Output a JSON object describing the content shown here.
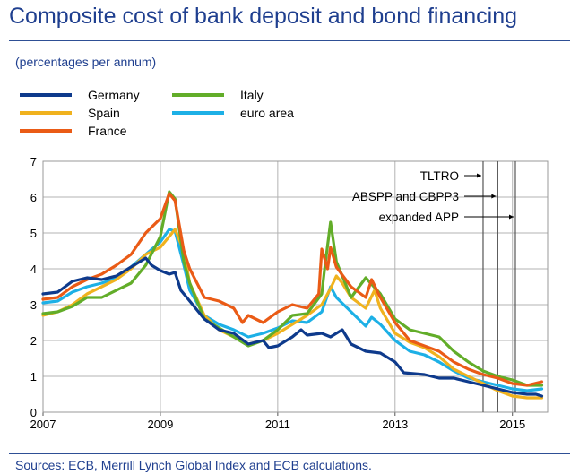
{
  "header": {
    "title": "Composite cost of bank deposit and bond financing",
    "subtitle": "(percentages per annum)"
  },
  "footer": {
    "source": "Sources: ECB, Merrill Lynch Global Index and ECB calculations."
  },
  "chart_data": {
    "type": "line",
    "title": "Composite cost of bank deposit and bond financing",
    "ylabel": "percentages per annum",
    "xlim": [
      2007.0,
      2015.6
    ],
    "ylim": [
      0,
      7
    ],
    "yticks": [
      0,
      1,
      2,
      3,
      4,
      5,
      6,
      7
    ],
    "xticks": [
      {
        "value": 2007,
        "label": "2007"
      },
      {
        "value": 2009,
        "label": "2009"
      },
      {
        "value": 2011,
        "label": "2011"
      },
      {
        "value": 2013,
        "label": "2013"
      },
      {
        "value": 2015,
        "label": "2015"
      }
    ],
    "grid": true,
    "legend_position": "top-left",
    "events": [
      {
        "label": "TLTRO",
        "x": 2014.5
      },
      {
        "label": "ABSPP and CBPP3",
        "x": 2014.75
      },
      {
        "label": "expanded APP",
        "x": 2015.05
      }
    ],
    "series": [
      {
        "name": "Germany",
        "color": "#0e3a8c",
        "points": [
          [
            2007.0,
            3.3
          ],
          [
            2007.25,
            3.35
          ],
          [
            2007.5,
            3.65
          ],
          [
            2007.75,
            3.75
          ],
          [
            2008.0,
            3.7
          ],
          [
            2008.25,
            3.8
          ],
          [
            2008.5,
            4.05
          ],
          [
            2008.75,
            4.3
          ],
          [
            2008.85,
            4.1
          ],
          [
            2009.0,
            3.95
          ],
          [
            2009.15,
            3.85
          ],
          [
            2009.25,
            3.9
          ],
          [
            2009.35,
            3.4
          ],
          [
            2009.5,
            3.1
          ],
          [
            2009.75,
            2.6
          ],
          [
            2010.0,
            2.3
          ],
          [
            2010.25,
            2.2
          ],
          [
            2010.5,
            1.9
          ],
          [
            2010.75,
            2.0
          ],
          [
            2010.85,
            1.8
          ],
          [
            2011.0,
            1.85
          ],
          [
            2011.25,
            2.1
          ],
          [
            2011.4,
            2.3
          ],
          [
            2011.5,
            2.15
          ],
          [
            2011.75,
            2.2
          ],
          [
            2011.9,
            2.1
          ],
          [
            2012.0,
            2.2
          ],
          [
            2012.1,
            2.3
          ],
          [
            2012.25,
            1.9
          ],
          [
            2012.5,
            1.7
          ],
          [
            2012.75,
            1.65
          ],
          [
            2013.0,
            1.4
          ],
          [
            2013.15,
            1.1
          ],
          [
            2013.5,
            1.05
          ],
          [
            2013.75,
            0.95
          ],
          [
            2014.0,
            0.95
          ],
          [
            2014.25,
            0.85
          ],
          [
            2014.5,
            0.75
          ],
          [
            2014.75,
            0.65
          ],
          [
            2015.0,
            0.55
          ],
          [
            2015.25,
            0.5
          ],
          [
            2015.4,
            0.5
          ],
          [
            2015.5,
            0.45
          ]
        ]
      },
      {
        "name": "Spain",
        "color": "#f0b21e",
        "points": [
          [
            2007.0,
            2.7
          ],
          [
            2007.25,
            2.8
          ],
          [
            2007.5,
            3.0
          ],
          [
            2007.75,
            3.3
          ],
          [
            2008.0,
            3.5
          ],
          [
            2008.25,
            3.7
          ],
          [
            2008.5,
            4.0
          ],
          [
            2008.75,
            4.4
          ],
          [
            2009.0,
            4.6
          ],
          [
            2009.15,
            4.9
          ],
          [
            2009.25,
            5.1
          ],
          [
            2009.4,
            4.5
          ],
          [
            2009.5,
            3.6
          ],
          [
            2009.75,
            2.7
          ],
          [
            2010.0,
            2.3
          ],
          [
            2010.25,
            2.1
          ],
          [
            2010.5,
            1.9
          ],
          [
            2010.75,
            2.0
          ],
          [
            2011.0,
            2.2
          ],
          [
            2011.25,
            2.45
          ],
          [
            2011.5,
            2.7
          ],
          [
            2011.75,
            3.0
          ],
          [
            2011.9,
            3.45
          ],
          [
            2012.0,
            3.8
          ],
          [
            2012.1,
            3.6
          ],
          [
            2012.25,
            3.2
          ],
          [
            2012.5,
            2.9
          ],
          [
            2012.65,
            3.4
          ],
          [
            2012.75,
            2.9
          ],
          [
            2013.0,
            2.2
          ],
          [
            2013.25,
            1.95
          ],
          [
            2013.5,
            1.8
          ],
          [
            2013.75,
            1.55
          ],
          [
            2014.0,
            1.2
          ],
          [
            2014.25,
            1.0
          ],
          [
            2014.5,
            0.8
          ],
          [
            2014.75,
            0.6
          ],
          [
            2015.0,
            0.45
          ],
          [
            2015.25,
            0.4
          ],
          [
            2015.5,
            0.4
          ]
        ]
      },
      {
        "name": "France",
        "color": "#ea5b16",
        "points": [
          [
            2007.0,
            3.15
          ],
          [
            2007.25,
            3.2
          ],
          [
            2007.5,
            3.5
          ],
          [
            2007.75,
            3.7
          ],
          [
            2008.0,
            3.85
          ],
          [
            2008.25,
            4.1
          ],
          [
            2008.5,
            4.4
          ],
          [
            2008.75,
            5.0
          ],
          [
            2009.0,
            5.4
          ],
          [
            2009.15,
            6.1
          ],
          [
            2009.25,
            5.9
          ],
          [
            2009.4,
            4.5
          ],
          [
            2009.5,
            4.0
          ],
          [
            2009.75,
            3.2
          ],
          [
            2010.0,
            3.1
          ],
          [
            2010.25,
            2.9
          ],
          [
            2010.4,
            2.5
          ],
          [
            2010.5,
            2.7
          ],
          [
            2010.75,
            2.5
          ],
          [
            2011.0,
            2.8
          ],
          [
            2011.25,
            3.0
          ],
          [
            2011.5,
            2.9
          ],
          [
            2011.7,
            3.3
          ],
          [
            2011.75,
            4.55
          ],
          [
            2011.85,
            4.0
          ],
          [
            2011.9,
            4.6
          ],
          [
            2012.0,
            4.05
          ],
          [
            2012.25,
            3.5
          ],
          [
            2012.5,
            3.2
          ],
          [
            2012.6,
            3.7
          ],
          [
            2012.75,
            3.2
          ],
          [
            2013.0,
            2.5
          ],
          [
            2013.25,
            2.0
          ],
          [
            2013.5,
            1.85
          ],
          [
            2013.75,
            1.7
          ],
          [
            2014.0,
            1.4
          ],
          [
            2014.25,
            1.2
          ],
          [
            2014.5,
            1.05
          ],
          [
            2014.75,
            0.95
          ],
          [
            2015.0,
            0.8
          ],
          [
            2015.25,
            0.75
          ],
          [
            2015.5,
            0.85
          ]
        ]
      },
      {
        "name": "Italy",
        "color": "#62ad29",
        "points": [
          [
            2007.0,
            2.75
          ],
          [
            2007.25,
            2.8
          ],
          [
            2007.5,
            2.95
          ],
          [
            2007.75,
            3.2
          ],
          [
            2008.0,
            3.2
          ],
          [
            2008.25,
            3.4
          ],
          [
            2008.5,
            3.6
          ],
          [
            2008.75,
            4.1
          ],
          [
            2009.0,
            4.9
          ],
          [
            2009.15,
            6.15
          ],
          [
            2009.25,
            5.95
          ],
          [
            2009.4,
            4.2
          ],
          [
            2009.5,
            3.6
          ],
          [
            2009.75,
            2.6
          ],
          [
            2010.0,
            2.35
          ],
          [
            2010.25,
            2.1
          ],
          [
            2010.5,
            1.85
          ],
          [
            2010.75,
            2.0
          ],
          [
            2011.0,
            2.3
          ],
          [
            2011.25,
            2.7
          ],
          [
            2011.5,
            2.75
          ],
          [
            2011.75,
            3.3
          ],
          [
            2011.8,
            4.0
          ],
          [
            2011.9,
            5.3
          ],
          [
            2012.0,
            4.2
          ],
          [
            2012.25,
            3.2
          ],
          [
            2012.5,
            3.75
          ],
          [
            2012.75,
            3.3
          ],
          [
            2013.0,
            2.6
          ],
          [
            2013.25,
            2.3
          ],
          [
            2013.5,
            2.2
          ],
          [
            2013.75,
            2.1
          ],
          [
            2014.0,
            1.7
          ],
          [
            2014.25,
            1.4
          ],
          [
            2014.5,
            1.15
          ],
          [
            2014.75,
            1.0
          ],
          [
            2015.0,
            0.9
          ],
          [
            2015.25,
            0.75
          ],
          [
            2015.5,
            0.75
          ]
        ]
      },
      {
        "name": "euro area",
        "color": "#1db0e6",
        "points": [
          [
            2007.0,
            3.05
          ],
          [
            2007.25,
            3.1
          ],
          [
            2007.5,
            3.35
          ],
          [
            2007.75,
            3.5
          ],
          [
            2008.0,
            3.6
          ],
          [
            2008.25,
            3.75
          ],
          [
            2008.5,
            4.05
          ],
          [
            2008.75,
            4.4
          ],
          [
            2009.0,
            4.75
          ],
          [
            2009.15,
            5.1
          ],
          [
            2009.25,
            5.05
          ],
          [
            2009.4,
            4.1
          ],
          [
            2009.5,
            3.4
          ],
          [
            2009.75,
            2.7
          ],
          [
            2010.0,
            2.45
          ],
          [
            2010.25,
            2.3
          ],
          [
            2010.5,
            2.1
          ],
          [
            2010.75,
            2.2
          ],
          [
            2011.0,
            2.35
          ],
          [
            2011.25,
            2.55
          ],
          [
            2011.5,
            2.5
          ],
          [
            2011.75,
            2.8
          ],
          [
            2011.9,
            3.5
          ],
          [
            2012.0,
            3.2
          ],
          [
            2012.25,
            2.8
          ],
          [
            2012.5,
            2.4
          ],
          [
            2012.6,
            2.65
          ],
          [
            2012.75,
            2.45
          ],
          [
            2013.0,
            2.0
          ],
          [
            2013.25,
            1.7
          ],
          [
            2013.5,
            1.6
          ],
          [
            2013.75,
            1.4
          ],
          [
            2014.0,
            1.15
          ],
          [
            2014.25,
            0.95
          ],
          [
            2014.5,
            0.85
          ],
          [
            2014.75,
            0.75
          ],
          [
            2015.0,
            0.65
          ],
          [
            2015.25,
            0.6
          ],
          [
            2015.5,
            0.65
          ]
        ]
      }
    ]
  }
}
